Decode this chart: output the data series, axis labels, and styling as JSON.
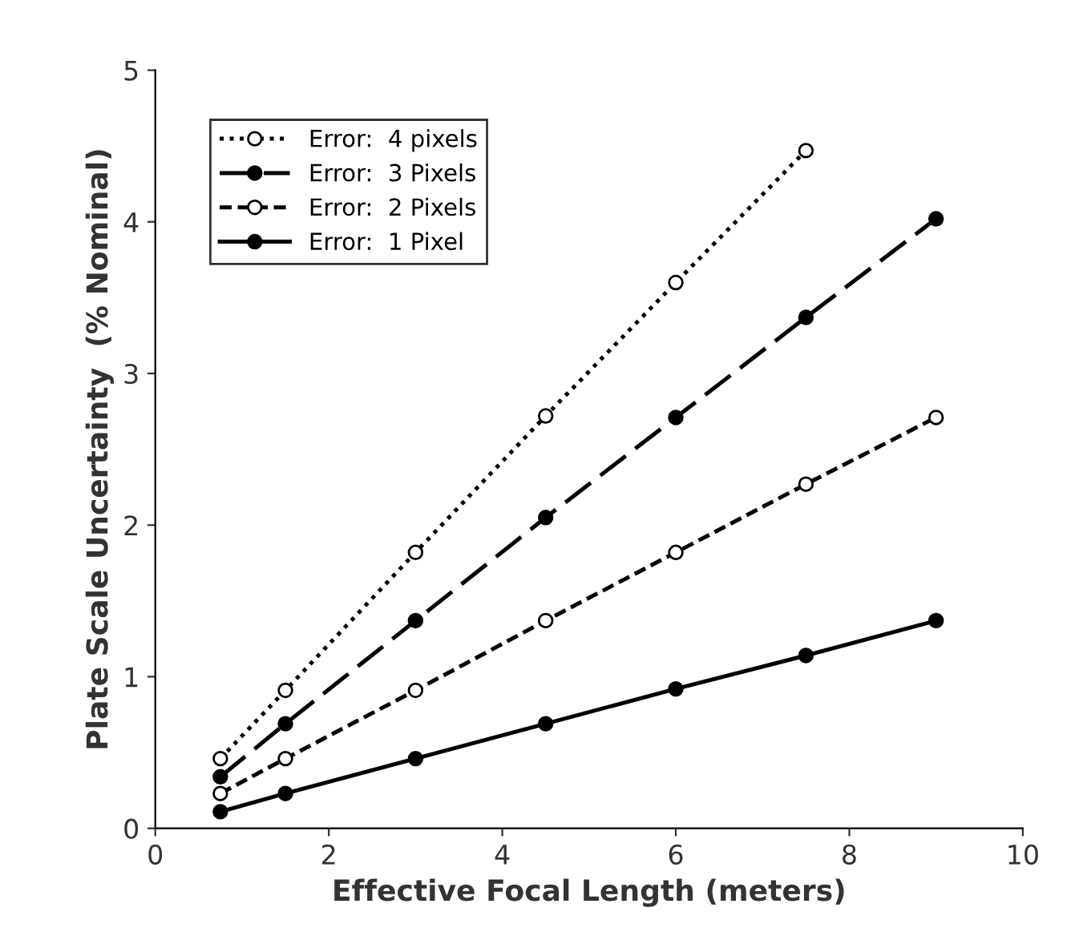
{
  "chart_data": {
    "type": "line",
    "xlabel": "Effective Focal Length (meters)",
    "ylabel": "Plate Scale Uncertainty  (% Nominal)",
    "x": [
      0.75,
      1.5,
      3,
      4.5,
      6,
      7.5,
      9
    ],
    "series": [
      {
        "name": "Error:  4 pixels",
        "color": "#000000",
        "line_style": "dotted",
        "marker": "circle",
        "x": [
          0.75,
          1.5,
          3,
          4.5,
          6,
          7.5
        ],
        "values": [
          0.46,
          0.91,
          1.82,
          2.72,
          3.6,
          4.47
        ]
      },
      {
        "name": "Error:  3 Pixels",
        "color": "#000000",
        "line_style": "longdash",
        "marker": "circle",
        "values": [
          0.34,
          0.69,
          1.37,
          2.05,
          2.71,
          3.37,
          4.02
        ]
      },
      {
        "name": "Error:  2 Pixels",
        "color": "#000000",
        "line_style": "dashed",
        "marker": "circle",
        "values": [
          0.23,
          0.46,
          0.91,
          1.37,
          1.82,
          2.27,
          2.71
        ]
      },
      {
        "name": "Error:  1 Pixel",
        "color": "#000000",
        "line_style": "solid",
        "marker": "circle",
        "values": [
          0.11,
          0.23,
          0.46,
          0.69,
          0.92,
          1.14,
          1.37
        ]
      }
    ],
    "xlim": [
      0,
      10
    ],
    "xticks": [
      0,
      2,
      4,
      6,
      8,
      10
    ],
    "ylim": [
      0,
      5
    ],
    "yticks": [
      0,
      1,
      2,
      3,
      4,
      5
    ],
    "grid": false,
    "legend": "top left"
  }
}
